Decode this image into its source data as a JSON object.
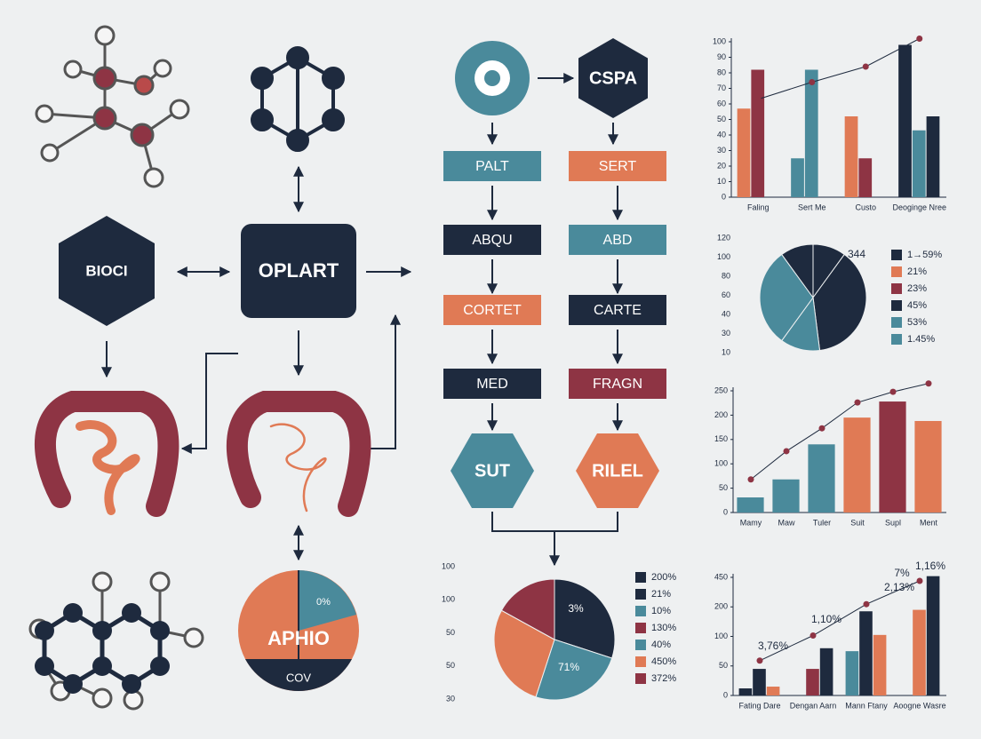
{
  "diagram": {
    "nodes": {
      "bioci": "BIOCI",
      "oplart": "OPLART",
      "cspa": "CSPA",
      "palt": "PALT",
      "abqu": "ABQU",
      "cortet": "CORTET",
      "med": "MED",
      "sert": "SERT",
      "abd": "ABD",
      "carte": "CARTE",
      "fragn": "FRAGN",
      "sut": "SUT",
      "rilel": "RILEL"
    },
    "aphio": {
      "title": "APHIO",
      "top": "0%",
      "bottom": "COV"
    }
  },
  "chart_data": [
    {
      "type": "bar",
      "categories": [
        "Faling",
        "Sert Me",
        "Custo",
        "Deoginge Nree"
      ],
      "ylim": [
        0,
        100
      ],
      "yticks": [
        0,
        10,
        20,
        30,
        40,
        50,
        60,
        70,
        80,
        90,
        100
      ],
      "series": [
        {
          "colors": [
            "#e07a55",
            "#4a8a9b",
            "#e07a55",
            "#1e2a3e"
          ],
          "values": [
            57,
            25,
            52,
            98
          ]
        },
        {
          "colors": [
            "#8e3444",
            "#4a8a9b",
            "#8e3444",
            "#4a8a9b"
          ],
          "values": [
            82,
            82,
            25,
            43
          ]
        },
        {
          "colors": [
            "#1e2a3e",
            "#1e2a3e",
            "#1e2a3e",
            "#1e2a3e"
          ],
          "values": [
            null,
            null,
            null,
            52
          ]
        },
        {
          "type": "line",
          "color": "#1e2a3e",
          "values": [
            63,
            74,
            84,
            102
          ]
        }
      ]
    },
    {
      "type": "pie",
      "values": [
        10,
        38,
        12,
        30,
        10
      ],
      "colors": [
        "#1e2a3e",
        "#1e2a3e",
        "#4a8a9b",
        "#4a8a9b",
        "#1e2a3e"
      ],
      "axis_labels": [
        "120",
        "100",
        "80",
        "60",
        "40",
        "30",
        "10"
      ],
      "annotations": [
        "344"
      ],
      "legend": [
        {
          "label": "1→59%",
          "color": "#1e2a3e"
        },
        {
          "label": "21%",
          "color": "#e07a55"
        },
        {
          "label": "23%",
          "color": "#8e3444"
        },
        {
          "label": "45%",
          "color": "#1e2a3e"
        },
        {
          "label": "53%",
          "color": "#4a8a9b"
        },
        {
          "label": "1.45%",
          "color": "#4a8a9b"
        }
      ]
    },
    {
      "type": "bar",
      "categories": [
        "Mamy",
        "Maw",
        "Tuler",
        "Suit",
        "Supl",
        "Ment"
      ],
      "ylim": [
        0,
        250
      ],
      "yticks": [
        0,
        50,
        100,
        150,
        200,
        250
      ],
      "series": [
        {
          "colors": [
            "#4a8a9b",
            "#4a8a9b",
            "#4a8a9b",
            "#e07a55",
            "#8e3444",
            "#e07a55"
          ],
          "values": [
            31,
            68,
            140,
            195,
            228,
            188
          ]
        },
        {
          "type": "line",
          "color": "#1e2a3e",
          "values": [
            68,
            126,
            173,
            226,
            248,
            265
          ]
        }
      ]
    },
    {
      "type": "bar",
      "categories": [
        "Fating Dare",
        "Dengan Aarn",
        "Mann Ftany",
        "Aoogne Wasre"
      ],
      "ylim": [
        0,
        450
      ],
      "yticks": [
        0,
        50,
        100,
        200,
        450
      ],
      "annotations": [
        "3,76%",
        "1,10%",
        "2,13%",
        "7%",
        "1,16%"
      ],
      "series": [
        {
          "colors": [
            "#1e2a3e",
            "#1e2a3e",
            "#4a8a9b",
            "#1e2a3e"
          ],
          "values": [
            12,
            null,
            75,
            null
          ]
        },
        {
          "colors": [
            "#1e2a3e",
            "#8e3444",
            "#1e2a3e",
            "#e07a55"
          ],
          "values": [
            45,
            45,
            185,
            190
          ]
        },
        {
          "colors": [
            "#e07a55",
            "#1e2a3e",
            "#e07a55",
            "#1e2a3e"
          ],
          "values": [
            15,
            80,
            105,
            460
          ]
        },
        {
          "type": "line",
          "color": "#1e2a3e",
          "values": [
            59,
            103,
            223,
            420
          ]
        }
      ]
    },
    {
      "type": "pie",
      "values": [
        30,
        25,
        28,
        17
      ],
      "colors": [
        "#1e2a3e",
        "#4a8a9b",
        "#e07a55",
        "#8e3444"
      ],
      "axis_labels": [
        "100",
        "100",
        "50",
        "50",
        "30"
      ],
      "annotations": [
        "3%",
        "71%"
      ],
      "legend": [
        {
          "label": "200%",
          "color": "#1e2a3e"
        },
        {
          "label": "21%",
          "color": "#1e2a3e"
        },
        {
          "label": "10%",
          "color": "#4a8a9b"
        },
        {
          "label": "130%",
          "color": "#8e3444"
        },
        {
          "label": "40%",
          "color": "#4a8a9b"
        },
        {
          "label": "450%",
          "color": "#e07a55"
        },
        {
          "label": "372%",
          "color": "#8e3444"
        }
      ]
    }
  ]
}
